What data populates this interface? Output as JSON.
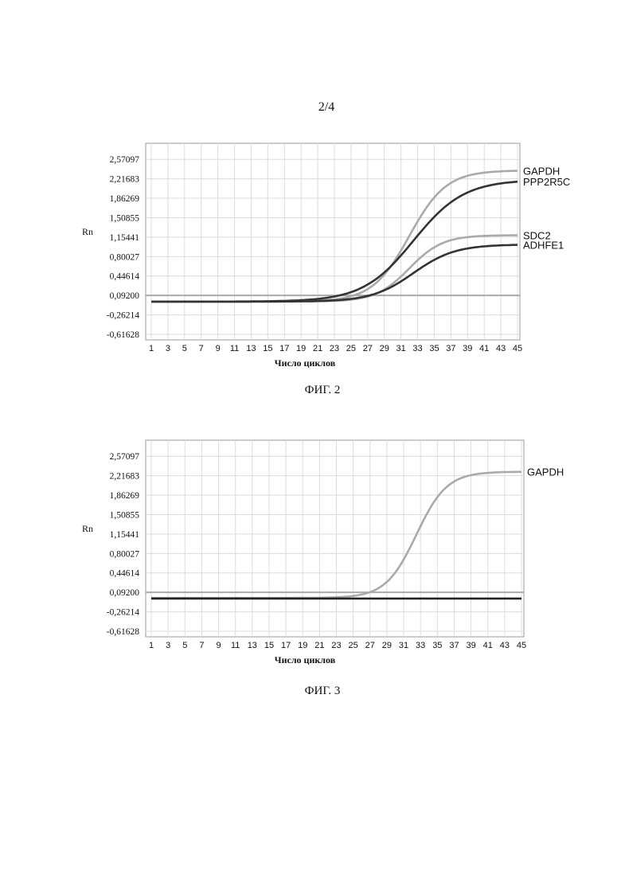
{
  "page": {
    "number": "2/4"
  },
  "figures": [
    {
      "caption": "ФИГ. 2"
    },
    {
      "caption": "ФИГ. 3"
    }
  ],
  "chart_data": [
    {
      "type": "line",
      "xlabel": "Число циклов",
      "ylabel": "Rn",
      "xlim": [
        1,
        45
      ],
      "ylim": [
        -0.61628,
        2.74804
      ],
      "y_ticks": [
        "2,57097",
        "2,21683",
        "1,86269",
        "1,50855",
        "1,15441",
        "0,80027",
        "0,44614",
        "0,09200",
        "-0,26214",
        "-0,61628"
      ],
      "y_tick_values": [
        2.57097,
        2.21683,
        1.86269,
        1.50855,
        1.15441,
        0.80027,
        0.44614,
        0.092,
        -0.26214,
        -0.61628
      ],
      "x_ticks": [
        "1",
        "3",
        "5",
        "7",
        "9",
        "11",
        "13",
        "15",
        "17",
        "19",
        "21",
        "23",
        "25",
        "27",
        "29",
        "31",
        "33",
        "35",
        "37",
        "39",
        "41",
        "43",
        "45"
      ],
      "x_tick_values": [
        1,
        3,
        5,
        7,
        9,
        11,
        13,
        15,
        17,
        19,
        21,
        23,
        25,
        27,
        29,
        31,
        33,
        35,
        37,
        39,
        41,
        43,
        45
      ],
      "grid": true,
      "threshold": 0.092,
      "threshold_color": "#aaaaaa",
      "series": [
        {
          "name": "GAPDH",
          "color": "#aaaaaa",
          "baseline": -0.02,
          "plateau": 2.37,
          "midpoint": 32.0,
          "slope": 0.45
        },
        {
          "name": "PPP2R5C",
          "color": "#333333",
          "baseline": -0.02,
          "plateau": 2.2,
          "midpoint": 32.5,
          "slope": 0.33
        },
        {
          "name": "SDC2",
          "color": "#aaaaaa",
          "baseline": -0.02,
          "plateau": 1.19,
          "midpoint": 32.0,
          "slope": 0.5
        },
        {
          "name": "ADHFE1",
          "color": "#333333",
          "baseline": -0.02,
          "plateau": 1.02,
          "midpoint": 32.5,
          "slope": 0.4
        }
      ]
    },
    {
      "type": "line",
      "xlabel": "Число циклов",
      "ylabel": "Rn",
      "xlim": [
        1,
        45
      ],
      "ylim": [
        -0.61628,
        2.74804
      ],
      "y_ticks": [
        "2,57097",
        "2,21683",
        "1,86269",
        "1,50855",
        "1,15441",
        "0,80027",
        "0,44614",
        "0,09200",
        "-0,26214",
        "-0,61628"
      ],
      "y_tick_values": [
        2.57097,
        2.21683,
        1.86269,
        1.50855,
        1.15441,
        0.80027,
        0.44614,
        0.092,
        -0.26214,
        -0.61628
      ],
      "x_ticks": [
        "1",
        "3",
        "5",
        "7",
        "9",
        "11",
        "13",
        "15",
        "17",
        "19",
        "21",
        "23",
        "25",
        "27",
        "29",
        "31",
        "33",
        "35",
        "37",
        "39",
        "41",
        "43",
        "45"
      ],
      "x_tick_values": [
        1,
        3,
        5,
        7,
        9,
        11,
        13,
        15,
        17,
        19,
        21,
        23,
        25,
        27,
        29,
        31,
        33,
        35,
        37,
        39,
        41,
        43,
        45
      ],
      "grid": true,
      "threshold": 0.092,
      "threshold_color": "#aaaaaa",
      "series": [
        {
          "name": "GAPDH",
          "color": "#aaaaaa",
          "baseline": -0.01,
          "plateau": 2.29,
          "midpoint": 32.5,
          "slope": 0.55
        },
        {
          "name": "",
          "color": "#222222",
          "baseline": -0.02,
          "plateau": 0,
          "midpoint": 60,
          "slope": 0.3
        }
      ]
    }
  ]
}
